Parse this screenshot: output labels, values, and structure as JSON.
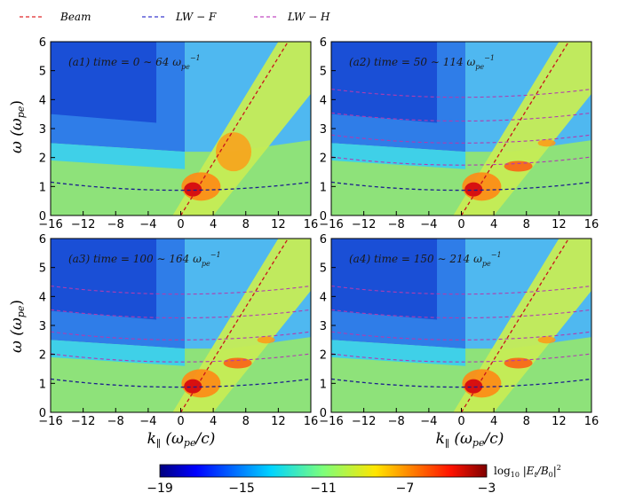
{
  "figure": {
    "legend": [
      {
        "label": "Beam",
        "color": "#e0282b"
      },
      {
        "label": "LW − F",
        "color": "#3a3acf"
      },
      {
        "label": "LW − H",
        "color": "#c24ac2"
      }
    ],
    "colorbar": {
      "ticks": [
        "−19",
        "−15",
        "−11",
        "−7",
        "−3"
      ],
      "range": [
        -19,
        -3
      ],
      "label_prefix": "log",
      "label_sub": "10",
      "label_body": " |E",
      "label_sub2": "t",
      "label_tail": "/B",
      "label_sub3": "0",
      "label_end": "|",
      "label_sup": "2",
      "colormap": "jet"
    },
    "xlabel": {
      "main": "k",
      "sub": "∥",
      "rest": " (ω",
      "sub2": "pe",
      "end": "/c)"
    },
    "ylabel": {
      "main": "ω (ω",
      "sub": "pe",
      "end": ")"
    }
  },
  "chart_data": [
    {
      "type": "heatmap",
      "panel": "a1",
      "label_prefix": "(a1) time = 0 ∼ 64 ω",
      "label_sub": "pe",
      "label_sup": "−1",
      "x": {
        "range": [
          -16,
          16
        ],
        "ticks": [
          "−16",
          "−12",
          "−8",
          "−4",
          "0",
          "4",
          "8",
          "12",
          "16"
        ]
      },
      "y": {
        "range": [
          0,
          6
        ],
        "ticks": [
          "0",
          "1",
          "2",
          "3",
          "4",
          "5",
          "6"
        ]
      },
      "harmonics_visible": false
    },
    {
      "type": "heatmap",
      "panel": "a2",
      "label_prefix": "(a2) time = 50 ∼ 114 ω",
      "label_sub": "pe",
      "label_sup": "−1",
      "x": {
        "range": [
          -16,
          16
        ],
        "ticks": [
          "−16",
          "−12",
          "−8",
          "−4",
          "0",
          "4",
          "8",
          "12",
          "16"
        ]
      },
      "y": {
        "range": [
          0,
          6
        ],
        "ticks": [
          "0",
          "1",
          "2",
          "3",
          "4",
          "5",
          "6"
        ]
      },
      "harmonics_visible": true
    },
    {
      "type": "heatmap",
      "panel": "a3",
      "label_prefix": "(a3) time = 100 ∼ 164 ω",
      "label_sub": "pe",
      "label_sup": "−1",
      "x": {
        "range": [
          -16,
          16
        ],
        "ticks": [
          "−16",
          "−12",
          "−8",
          "−4",
          "0",
          "4",
          "8",
          "12",
          "16"
        ]
      },
      "y": {
        "range": [
          0,
          6
        ],
        "ticks": [
          "0",
          "1",
          "2",
          "3",
          "4",
          "5",
          "6"
        ]
      },
      "harmonics_visible": true
    },
    {
      "type": "heatmap",
      "panel": "a4",
      "label_prefix": "(a4) time = 150 ∼ 214 ω",
      "label_sub": "pe",
      "label_sup": "−1",
      "x": {
        "range": [
          -16,
          16
        ],
        "ticks": [
          "−16",
          "−12",
          "−8",
          "−4",
          "0",
          "4",
          "8",
          "12",
          "16"
        ]
      },
      "y": {
        "range": [
          0,
          6
        ],
        "ticks": [
          "0",
          "1",
          "2",
          "3",
          "4",
          "5",
          "6"
        ]
      },
      "harmonics_visible": true
    }
  ],
  "curves": {
    "beam_line": {
      "points": [
        [
          0,
          0
        ],
        [
          13.2,
          6
        ]
      ]
    },
    "lw_f": {
      "omega0": 0.87,
      "k_coef": 0.0011
    },
    "lw_h_levels": [
      1.74,
      2.5,
      3.26,
      4.08
    ],
    "lw_h_k_coef": 0.0011
  }
}
